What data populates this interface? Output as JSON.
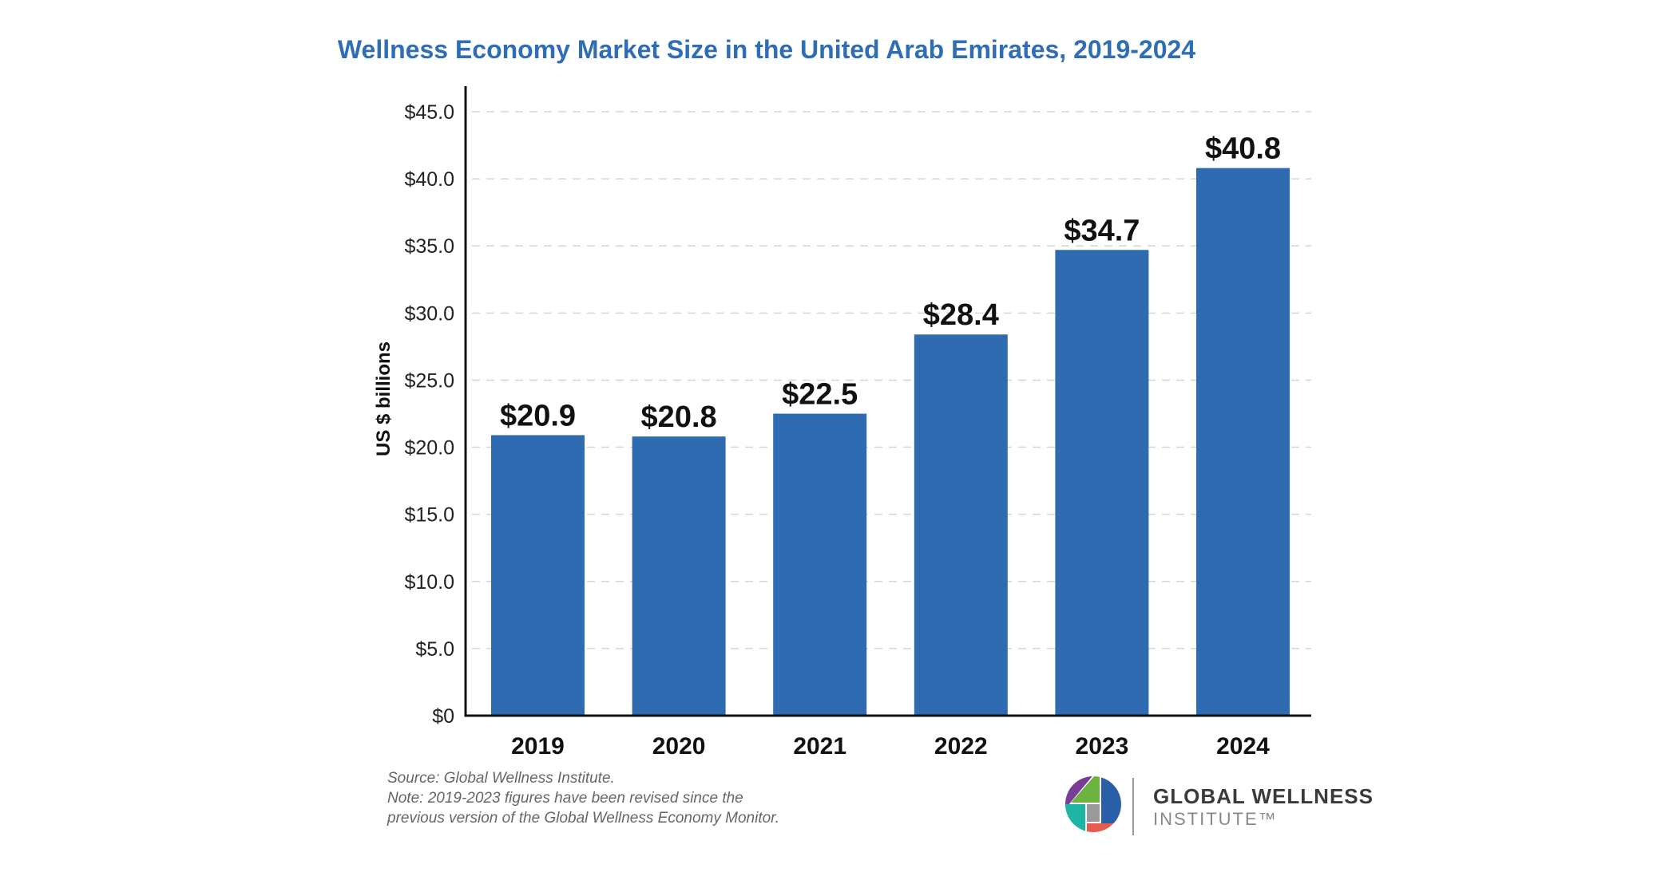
{
  "chart_data": {
    "type": "bar",
    "title": "Wellness Economy Market Size in the United Arab Emirates, 2019-2024",
    "xlabel": "",
    "ylabel": "US $ billions",
    "categories": [
      "2019",
      "2020",
      "2021",
      "2022",
      "2023",
      "2024"
    ],
    "values": [
      20.9,
      20.8,
      22.5,
      28.4,
      34.7,
      40.8
    ],
    "data_labels": [
      "$20.9",
      "$20.8",
      "$22.5",
      "$28.4",
      "$34.7",
      "$40.8"
    ],
    "ylim": [
      0,
      45
    ],
    "yticks": [
      0,
      5,
      10,
      15,
      20,
      25,
      30,
      35,
      40,
      45
    ],
    "ytick_labels": [
      "$0",
      "$5.0",
      "$10.0",
      "$15.0",
      "$20.0",
      "$25.0",
      "$30.0",
      "$35.0",
      "$40.0",
      "$45.0"
    ],
    "grid": true,
    "bar_color": "#2f6bb1"
  },
  "notes": {
    "source": "Source: Global Wellness Institute.",
    "note_line1": "Note: 2019-2023 figures have been revised since the",
    "note_line2": "previous version of the Global Wellness Economy Monitor."
  },
  "logo": {
    "line1": "GLOBAL WELLNESS",
    "line2": "INSTITUTE™"
  }
}
